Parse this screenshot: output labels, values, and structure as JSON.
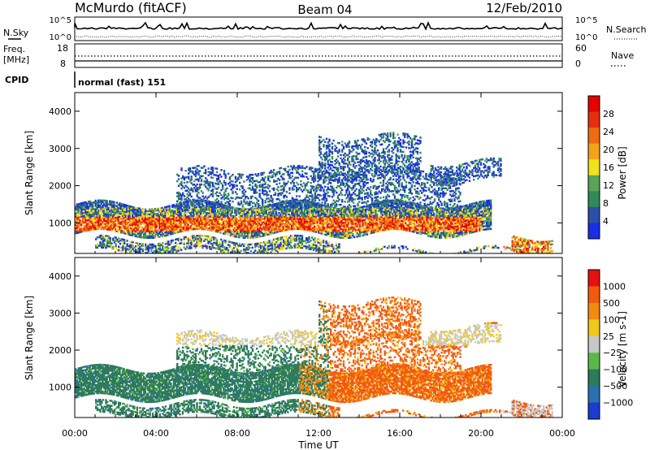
{
  "header": {
    "station": "McMurdo (fitACF)",
    "beam": "Beam 04",
    "date": "12/Feb/2010"
  },
  "top_panels": {
    "nsky_label": "N.Sky",
    "nsearch_label": "N.Search",
    "noise_ticks_left": [
      "10^5",
      "10^0"
    ],
    "noise_ticks_right": [
      "10^5",
      "10^0"
    ],
    "freq_label_1": "Freq.",
    "freq_label_2": "[MHz]",
    "freq_ticks": [
      "18",
      "8"
    ],
    "nave_label": "Nave",
    "nave_ticks": [
      "60",
      "0"
    ],
    "cpid_label": "CPID",
    "cpid_value": "normal (fast) 151"
  },
  "colors": {
    "power_scale": [
      "#1a2ee6",
      "#2a50a8",
      "#2f8a57",
      "#5aa35a",
      "#f2e21a",
      "#f2a31a",
      "#f26a10",
      "#e62e10",
      "#e60000"
    ],
    "velocity_scale": [
      "#1a3ccf",
      "#2a70b0",
      "#2f7a5a",
      "#5ab84a",
      "#c8c8c8",
      "#f2c81a",
      "#f28a10",
      "#f25a10",
      "#e61010"
    ]
  },
  "chart_data": [
    {
      "type": "heatmap",
      "name": "power",
      "xlabel": "",
      "ylabel": "Slant Range [km]",
      "x_range_hours": [
        0,
        24
      ],
      "y_range_km": [
        180,
        4500
      ],
      "ytick_values": [
        1000,
        2000,
        3000,
        4000
      ],
      "yticks": [
        "1000",
        "2000",
        "3000",
        "4000"
      ],
      "colorbar_label": "Power [dB]",
      "colorbar_ticks": [
        "4",
        "8",
        "12",
        "16",
        "20",
        "24",
        "28"
      ],
      "colorbar_range": [
        0,
        32
      ]
    },
    {
      "type": "heatmap",
      "name": "velocity",
      "xlabel": "Time UT",
      "ylabel": "Slant Range [km]",
      "x_range_hours": [
        0,
        24
      ],
      "xticks": [
        "00:00",
        "04:00",
        "08:00",
        "12:00",
        "16:00",
        "20:00",
        "00:00"
      ],
      "y_range_km": [
        180,
        4500
      ],
      "ytick_values": [
        1000,
        2000,
        3000,
        4000
      ],
      "yticks": [
        "1000",
        "2000",
        "3000",
        "4000"
      ],
      "colorbar_label": "Velocity [m s-1]",
      "colorbar_ticks": [
        "1000",
        "500",
        "100",
        "25",
        "−25",
        "−100",
        "−500",
        "−1000"
      ]
    }
  ]
}
